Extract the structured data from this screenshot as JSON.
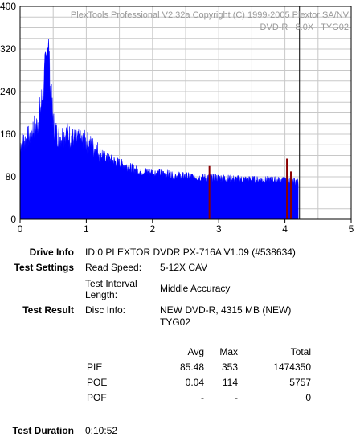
{
  "chart_data": {
    "type": "area",
    "watermark_line1": "PlexTools Professional V2.32a Copyright (C) 1999-2005 Plextor SA/NV",
    "watermark_line2": "DVD-R   8.0X   TYG02",
    "xlim": [
      0,
      5
    ],
    "ylim": [
      0,
      400
    ],
    "x_ticks": [
      "0",
      "1",
      "2",
      "3",
      "4",
      "5"
    ],
    "y_ticks": [
      "0",
      "80",
      "160",
      "240",
      "320",
      "400"
    ],
    "grid": true,
    "end_marker_x": 4.22,
    "colors": {
      "pie": "#0000ff",
      "poe": "#8b0000",
      "grid": "#c8c8c8"
    },
    "pie_series": {
      "x": [
        0.0,
        0.05,
        0.1,
        0.15,
        0.2,
        0.25,
        0.3,
        0.35,
        0.4,
        0.42,
        0.45,
        0.5,
        0.55,
        0.6,
        0.7,
        0.8,
        0.9,
        1.0,
        1.1,
        1.2,
        1.3,
        1.4,
        1.5,
        1.6,
        1.8,
        2.0,
        2.2,
        2.4,
        2.6,
        2.8,
        3.0,
        3.2,
        3.4,
        3.6,
        3.8,
        4.0,
        4.1,
        4.2
      ],
      "y": [
        140,
        145,
        150,
        155,
        170,
        175,
        200,
        240,
        300,
        350,
        260,
        180,
        160,
        155,
        160,
        150,
        145,
        145,
        135,
        125,
        115,
        110,
        105,
        100,
        90,
        88,
        85,
        82,
        80,
        78,
        78,
        76,
        75,
        74,
        74,
        73,
        72,
        70
      ]
    },
    "poe_spikes": {
      "x": [
        2.86,
        4.03,
        4.09
      ],
      "y": [
        100,
        114,
        90
      ]
    }
  },
  "drive_info": {
    "label": "Drive Info",
    "value": "ID:0 PLEXTOR DVDR PX-716A V1.09 (#538634)"
  },
  "test_settings": {
    "label": "Test Settings",
    "read_speed_label": "Read Speed:",
    "read_speed_value": "5-12X CAV",
    "interval_label_1": "Test Interval",
    "interval_label_2": "Length:",
    "interval_value": "Middle Accuracy"
  },
  "test_result": {
    "label": "Test Result",
    "disc_info_label": "Disc Info:",
    "disc_info_line1": "NEW DVD-R, 4315 MB (NEW)",
    "disc_info_line2": "TYG02"
  },
  "table": {
    "headers": {
      "avg": "Avg",
      "max": "Max",
      "total": "Total"
    },
    "rows": [
      {
        "name": "PIE",
        "avg": "85.48",
        "max": "353",
        "total": "1474350"
      },
      {
        "name": "POE",
        "avg": "0.04",
        "max": "114",
        "total": "5757"
      },
      {
        "name": "POF",
        "avg": "-",
        "max": "-",
        "total": "0"
      }
    ]
  },
  "test_duration": {
    "label": "Test Duration",
    "value": "0:10:52"
  }
}
